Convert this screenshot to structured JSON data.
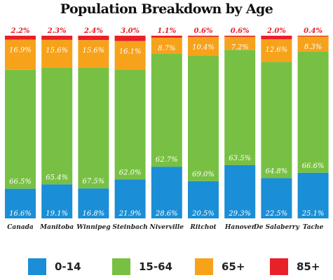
{
  "chart_data": {
    "type": "bar",
    "stacked": true,
    "percent_stacked": true,
    "title": "Population Breakdown by Age",
    "categories": [
      "Canada",
      "Manitoba",
      "Winnipeg",
      "Steinbach",
      "Niverville",
      "Ritchot",
      "Hanover",
      "De Salaberry",
      "Tache"
    ],
    "series": [
      {
        "name": "0-14",
        "color": "#1a8ed6",
        "values": [
          16.6,
          19.1,
          16.8,
          21.9,
          28.6,
          20.5,
          29.3,
          22.5,
          25.1
        ],
        "labels": [
          "16.6%",
          "19.1%",
          "16.8%",
          "21.9%",
          "28.6%",
          "20.5%",
          "29.3%",
          "22.5%",
          "25.1%"
        ]
      },
      {
        "name": "15-64",
        "color": "#78c043",
        "values": [
          66.5,
          65.4,
          67.5,
          62.0,
          62.7,
          69.0,
          63.5,
          64.8,
          66.6
        ],
        "labels": [
          "66.5%",
          "65.4%",
          "67.5%",
          "62.0%",
          "62.7%",
          "69.0%",
          "63.5%",
          "64.8%",
          "66.6%"
        ]
      },
      {
        "name": "65+",
        "color": "#f7a21b",
        "values": [
          16.9,
          15.6,
          15.6,
          16.1,
          8.7,
          10.4,
          7.2,
          12.6,
          8.3
        ],
        "labels": [
          "16.9%",
          "15.6%",
          "15.6%",
          "16.1%",
          "8.7%",
          "10.4%",
          "7.2%",
          "12.6%",
          "8.3%"
        ]
      },
      {
        "name": "85+",
        "color": "#e8202a",
        "values": [
          2.2,
          2.3,
          2.4,
          3.0,
          1.1,
          0.6,
          0.6,
          2.0,
          0.4
        ],
        "labels": [
          "2.2%",
          "2.3%",
          "2.4%",
          "3.0%",
          "1.1%",
          "0.6%",
          "0.6%",
          "2.0%",
          "0.4%"
        ]
      }
    ],
    "legend_position": "bottom",
    "grid": false
  }
}
